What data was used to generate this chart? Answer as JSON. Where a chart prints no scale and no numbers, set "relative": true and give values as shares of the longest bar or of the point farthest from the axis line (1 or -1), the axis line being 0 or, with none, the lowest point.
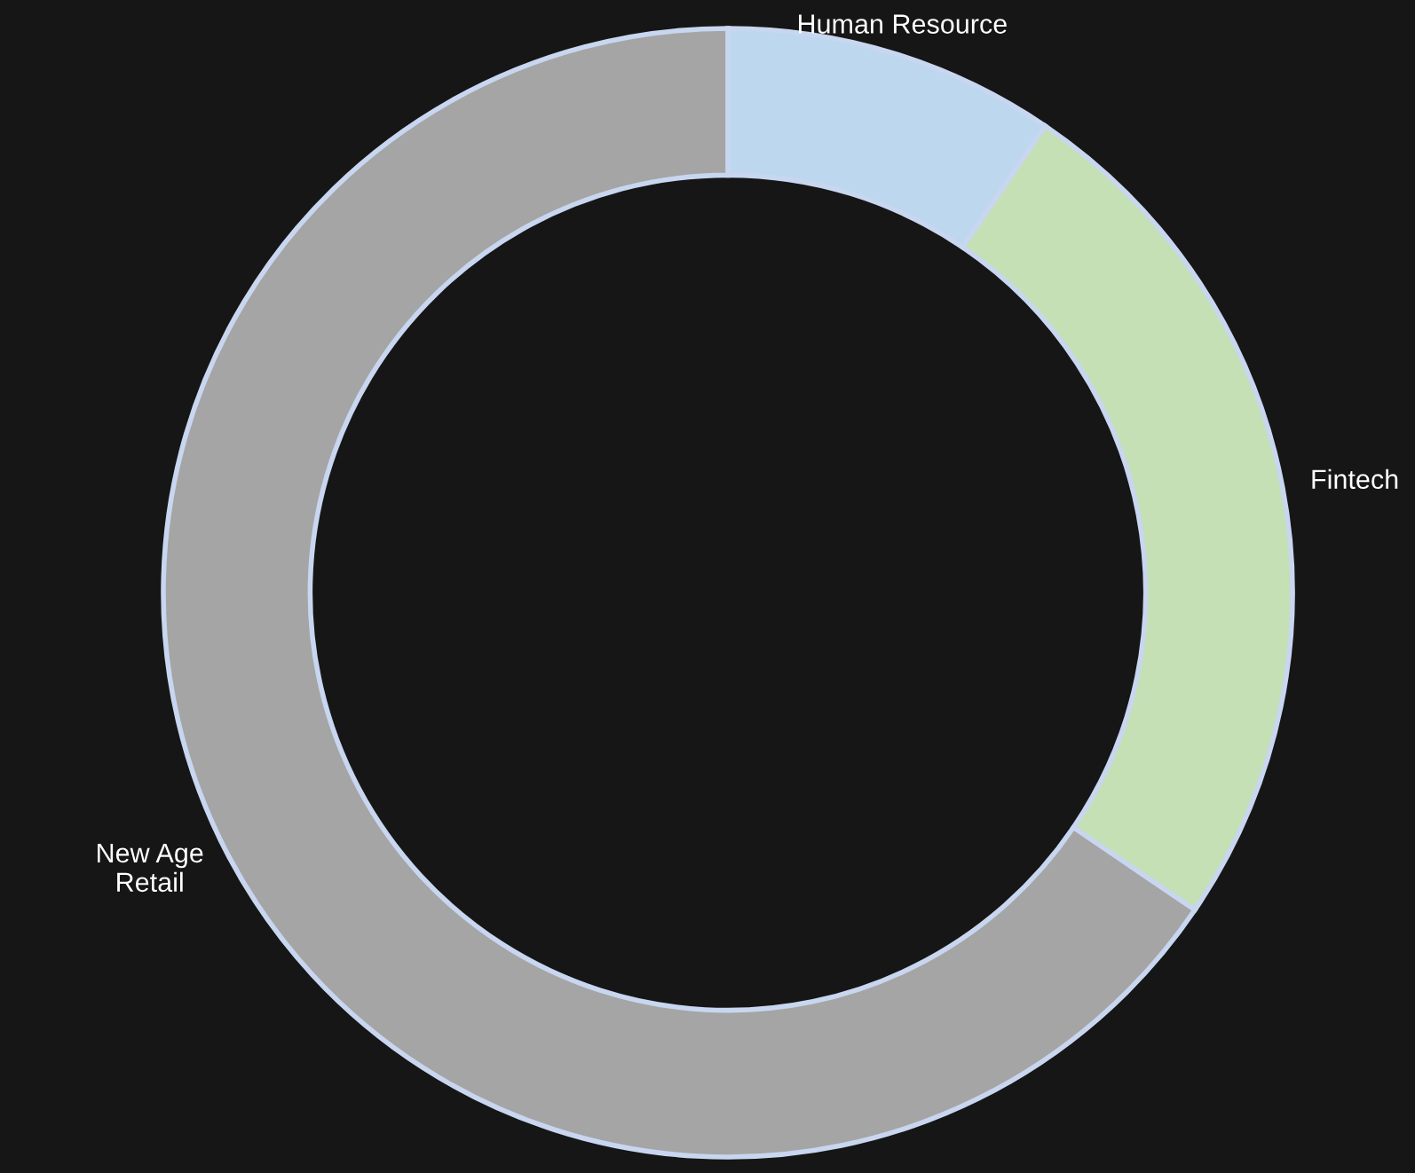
{
  "chart_data": {
    "type": "donut",
    "categories": [
      "Human Resource",
      "Fintech",
      "New Age\nRetail"
    ],
    "values": [
      9.5,
      25,
      65.5
    ],
    "colors": [
      "#bdd7ee",
      "#c5e0b4",
      "#a5a5a5"
    ],
    "relative": true,
    "legend": false
  }
}
